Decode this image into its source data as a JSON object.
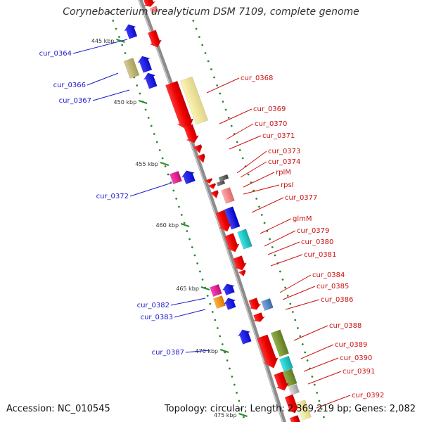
{
  "title": "Corynebacterium urealyticum DSM 7109, complete genome",
  "footer": {
    "accession": "Accession: NC_010545",
    "summary": "Topology: circular; Length: 2,369,219 bp; Genes: 2,082"
  },
  "ruler": [
    "445 kbp",
    "450 kbp",
    "455 kbp",
    "460 kbp",
    "465 kbp",
    "470 kbp",
    "475 kbp"
  ],
  "genes_forward": [
    "cur_0364",
    "cur_0366",
    "cur_0367",
    "cur_0372",
    "cur_0382",
    "cur_0383",
    "cur_0387"
  ],
  "genes_reverse": [
    "cur_0368",
    "cur_0369",
    "cur_0370",
    "cur_0371",
    "cur_0373",
    "cur_0374",
    "rplM",
    "rpsI",
    "cur_0377",
    "glmM",
    "cur_0379",
    "cur_0380",
    "cur_0381",
    "cur_0384",
    "cur_0385",
    "cur_0386",
    "cur_0388",
    "cur_0389",
    "cur_0390",
    "cur_0391",
    "cur_0392"
  ],
  "colors": {
    "forward_label": "#1a1acc",
    "reverse_label": "#cc1111",
    "backbone": "#8c8c8c",
    "ruler_dots": "#2a8a2a"
  }
}
